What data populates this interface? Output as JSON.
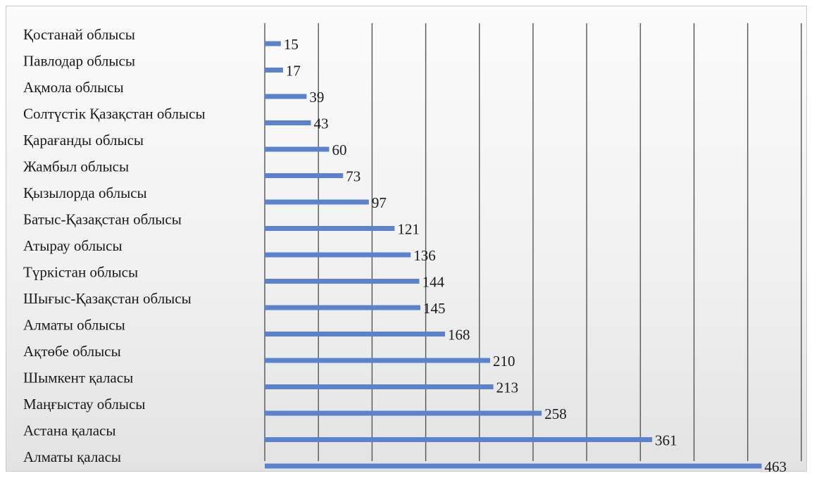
{
  "chart_data": {
    "type": "bar",
    "orientation": "horizontal",
    "title": "",
    "xlabel": "",
    "ylabel": "",
    "xlim": [
      0,
      500
    ],
    "grid": true,
    "legend": "none",
    "bar_color": "#5b82cc",
    "categories": [
      "Қостанай облысы",
      "Павлодар облысы",
      "Ақмола облысы",
      "Солтүстік Қазақстан облысы",
      "Қарағанды облысы",
      "Жамбыл облысы",
      "Қызылорда облысы",
      "Батыс-Қазақстан облысы",
      "Атырау облысы",
      "Түркістан облысы",
      "Шығыс-Қазақстан облысы",
      "Алматы облысы",
      "Ақтөбе облысы",
      "Шымкент қаласы",
      "Маңғыстау облысы",
      "Астана қаласы",
      "Алматы қаласы"
    ],
    "values": [
      15,
      17,
      39,
      43,
      60,
      73,
      97,
      121,
      136,
      144,
      145,
      168,
      210,
      213,
      258,
      361,
      463
    ]
  }
}
